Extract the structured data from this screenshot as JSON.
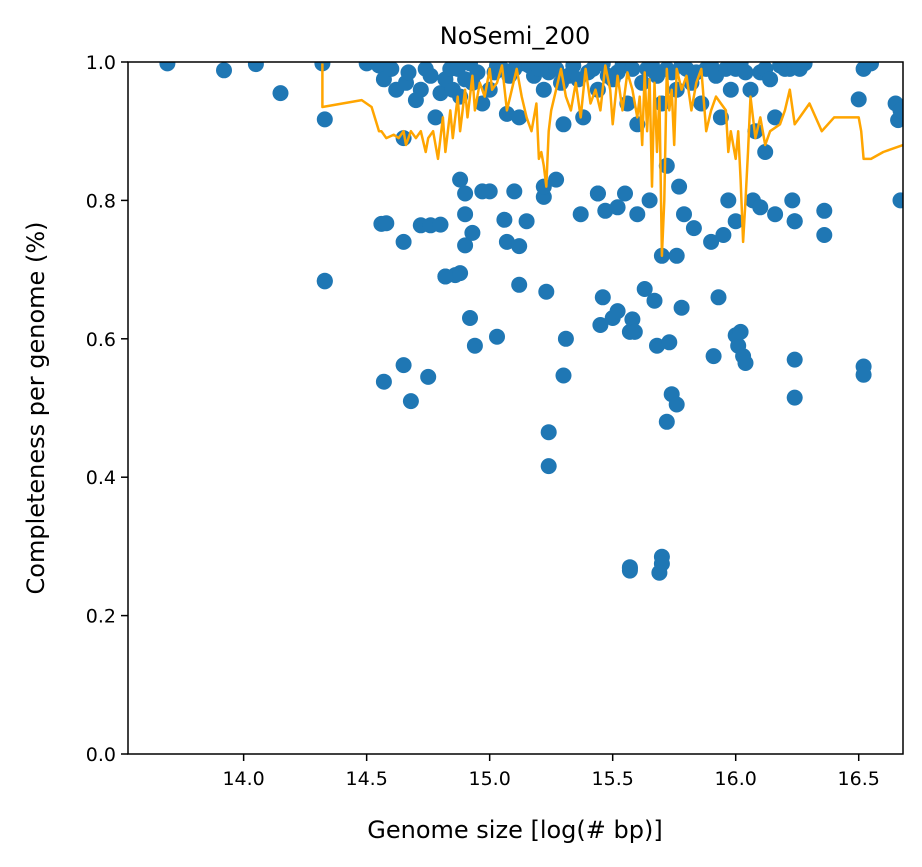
{
  "chart_data": {
    "type": "scatter",
    "title": "NoSemi_200",
    "xlabel": "Genome size [log(# bp)]",
    "ylabel": "Completeness per genome (%)",
    "xlim": [
      13.53,
      16.68
    ],
    "ylim": [
      0.0,
      1.0
    ],
    "x_ticks": [
      14.0,
      14.5,
      15.0,
      15.5,
      16.0,
      16.5
    ],
    "x_tick_labels": [
      "14.0",
      "14.5",
      "15.0",
      "15.5",
      "16.0",
      "16.5"
    ],
    "y_ticks": [
      0.0,
      0.2,
      0.4,
      0.6,
      0.8,
      1.0
    ],
    "y_tick_labels": [
      "0.0",
      "0.2",
      "0.4",
      "0.6",
      "0.8",
      "1.0"
    ],
    "grid": false,
    "colors": {
      "points": "#1f77b4",
      "line": "#ffa500"
    },
    "series": [
      {
        "type": "scatter",
        "x": [
          13.69,
          13.92,
          14.05,
          14.15,
          14.32,
          14.33,
          14.33,
          14.5,
          14.55,
          14.57,
          14.6,
          14.62,
          14.65,
          14.66,
          14.67,
          14.7,
          14.72,
          14.74,
          14.76,
          14.78,
          14.8,
          14.82,
          14.84,
          14.85,
          14.87,
          14.88,
          14.9,
          14.92,
          14.93,
          14.95,
          14.97,
          15.0,
          15.02,
          15.03,
          15.05,
          15.07,
          15.08,
          15.1,
          15.12,
          15.14,
          15.16,
          15.18,
          15.2,
          15.22,
          15.24,
          15.25,
          15.27,
          15.29,
          15.3,
          15.32,
          15.34,
          15.36,
          15.38,
          15.4,
          15.42,
          15.44,
          15.46,
          15.48,
          15.5,
          15.52,
          15.54,
          15.56,
          15.58,
          15.6,
          15.62,
          15.64,
          15.66,
          15.68,
          15.7,
          15.72,
          15.74,
          15.76,
          15.78,
          15.8,
          15.82,
          15.84,
          15.86,
          15.88,
          15.9,
          15.92,
          15.94,
          15.96,
          15.98,
          16.0,
          16.02,
          16.04,
          16.06,
          16.08,
          16.1,
          16.12,
          16.14,
          16.16,
          16.18,
          16.2,
          16.22,
          16.24,
          16.26,
          16.28,
          16.5,
          16.52,
          16.55,
          16.67,
          16.66,
          16.65,
          16.67,
          14.56,
          14.58,
          14.65,
          14.72,
          14.76,
          14.8,
          14.82,
          14.86,
          14.88,
          14.9,
          14.9,
          14.9,
          14.93,
          14.97,
          15.0,
          15.06,
          15.07,
          15.1,
          15.12,
          15.15,
          15.22,
          15.22,
          15.27,
          15.37,
          15.44,
          15.44,
          15.47,
          15.52,
          15.55,
          15.6,
          15.65,
          15.7,
          15.72,
          15.76,
          15.77,
          15.79,
          15.83,
          15.9,
          15.95,
          15.97,
          16.0,
          16.07,
          16.1,
          16.12,
          16.16,
          16.23,
          16.24,
          16.24,
          16.36,
          16.36,
          14.33,
          14.57,
          14.65,
          14.68,
          14.75,
          14.82,
          14.88,
          14.92,
          14.94,
          15.03,
          15.12,
          15.23,
          15.24,
          15.24,
          15.3,
          15.31,
          15.45,
          15.46,
          15.5,
          15.52,
          15.57,
          15.58,
          15.59,
          15.63,
          15.67,
          15.68,
          15.72,
          15.73,
          15.74,
          15.76,
          15.78,
          15.91,
          15.93,
          16.0,
          16.01,
          16.02,
          16.03,
          16.04,
          16.24,
          16.24,
          15.57,
          15.7,
          15.7,
          15.57,
          15.69,
          15.57,
          16.52,
          16.52
        ],
        "y": [
          0.998,
          0.988,
          0.997,
          0.955,
          0.998,
          0.917,
          0.684,
          0.998,
          0.995,
          0.975,
          0.99,
          0.96,
          0.89,
          0.97,
          0.985,
          0.945,
          0.96,
          0.99,
          0.98,
          0.92,
          0.955,
          0.975,
          0.99,
          0.96,
          0.99,
          0.95,
          0.975,
          0.998,
          0.97,
          0.985,
          0.94,
          0.96,
          0.985,
          0.995,
          0.99,
          0.925,
          0.98,
          0.99,
          0.92,
          0.998,
          0.995,
          0.98,
          0.99,
          0.96,
          0.985,
          0.995,
          0.99,
          0.97,
          0.91,
          0.98,
          0.995,
          0.975,
          0.92,
          0.985,
          0.99,
          0.96,
          0.998,
          0.98,
          0.975,
          0.985,
          0.995,
          0.94,
          0.99,
          0.91,
          0.97,
          0.99,
          0.995,
          0.98,
          0.94,
          0.99,
          0.985,
          0.96,
          0.995,
          0.99,
          0.97,
          0.985,
          0.94,
          0.99,
          0.995,
          0.98,
          0.92,
          0.99,
          0.96,
          0.99,
          0.998,
          0.985,
          0.96,
          0.9,
          0.985,
          0.99,
          0.975,
          0.92,
          0.995,
          0.99,
          0.99,
          0.997,
          0.99,
          0.998,
          0.946,
          0.99,
          0.998,
          0.8,
          0.916,
          0.94,
          0.93,
          0.766,
          0.767,
          0.74,
          0.764,
          0.764,
          0.765,
          0.69,
          0.692,
          0.83,
          0.81,
          0.78,
          0.735,
          0.753,
          0.813,
          0.813,
          0.772,
          0.74,
          0.813,
          0.734,
          0.77,
          0.805,
          0.82,
          0.83,
          0.78,
          0.81,
          0.81,
          0.785,
          0.79,
          0.81,
          0.78,
          0.8,
          0.72,
          0.85,
          0.72,
          0.82,
          0.78,
          0.76,
          0.74,
          0.75,
          0.8,
          0.77,
          0.8,
          0.79,
          0.87,
          0.78,
          0.8,
          0.77,
          0.77,
          0.75,
          0.785,
          0.683,
          0.538,
          0.562,
          0.51,
          0.545,
          0.69,
          0.695,
          0.63,
          0.59,
          0.603,
          0.678,
          0.668,
          0.465,
          0.416,
          0.547,
          0.6,
          0.62,
          0.66,
          0.63,
          0.64,
          0.61,
          0.628,
          0.61,
          0.672,
          0.655,
          0.59,
          0.48,
          0.595,
          0.52,
          0.505,
          0.645,
          0.575,
          0.66,
          0.605,
          0.59,
          0.61,
          0.575,
          0.565,
          0.57,
          0.515,
          0.27,
          0.285,
          0.275,
          0.265,
          0.262,
          0.268,
          0.56,
          0.548
        ]
      },
      {
        "type": "line",
        "x": [
          14.32,
          14.32,
          14.48,
          14.52,
          14.55,
          14.56,
          14.58,
          14.61,
          14.63,
          14.65,
          14.66,
          14.68,
          14.7,
          14.72,
          14.74,
          14.75,
          14.77,
          14.79,
          14.81,
          14.82,
          14.84,
          14.85,
          14.87,
          14.88,
          14.9,
          14.91,
          14.93,
          14.94,
          14.96,
          14.98,
          15.0,
          15.01,
          15.03,
          15.05,
          15.07,
          15.09,
          15.11,
          15.13,
          15.15,
          15.17,
          15.19,
          15.2,
          15.21,
          15.22,
          15.23,
          15.24,
          15.25,
          15.27,
          15.29,
          15.31,
          15.33,
          15.35,
          15.37,
          15.39,
          15.41,
          15.43,
          15.45,
          15.47,
          15.49,
          15.5,
          15.52,
          15.54,
          15.56,
          15.58,
          15.6,
          15.61,
          15.62,
          15.63,
          15.64,
          15.65,
          15.66,
          15.67,
          15.68,
          15.69,
          15.7,
          15.71,
          15.72,
          15.73,
          15.74,
          15.75,
          15.76,
          15.78,
          15.8,
          15.82,
          15.84,
          15.86,
          15.88,
          15.9,
          15.92,
          15.94,
          15.96,
          15.97,
          15.98,
          16.0,
          16.01,
          16.02,
          16.03,
          16.04,
          16.05,
          16.06,
          16.08,
          16.1,
          16.12,
          16.14,
          16.18,
          16.2,
          16.22,
          16.24,
          16.26,
          16.3,
          16.35,
          16.4,
          16.45,
          16.5,
          16.51,
          16.52,
          16.55,
          16.6,
          16.68
        ],
        "y": [
          0.998,
          0.935,
          0.945,
          0.935,
          0.9,
          0.9,
          0.89,
          0.895,
          0.89,
          0.9,
          0.88,
          0.9,
          0.89,
          0.9,
          0.87,
          0.89,
          0.9,
          0.86,
          0.92,
          0.87,
          0.93,
          0.89,
          0.95,
          0.9,
          0.96,
          0.92,
          0.98,
          0.93,
          0.97,
          0.95,
          0.99,
          0.96,
          0.97,
          0.995,
          0.93,
          0.96,
          0.99,
          0.95,
          0.92,
          0.9,
          0.94,
          0.86,
          0.87,
          0.85,
          0.82,
          0.9,
          0.93,
          0.96,
          0.99,
          0.95,
          0.93,
          0.97,
          0.92,
          0.99,
          0.94,
          0.96,
          0.93,
          0.995,
          0.96,
          0.91,
          0.98,
          0.93,
          0.985,
          0.96,
          0.92,
          0.95,
          0.88,
          0.985,
          0.9,
          0.975,
          0.82,
          0.97,
          0.87,
          0.95,
          0.72,
          0.8,
          0.99,
          0.93,
          0.96,
          0.88,
          0.99,
          0.96,
          0.98,
          0.93,
          0.97,
          0.99,
          0.9,
          0.93,
          0.95,
          0.94,
          0.93,
          0.87,
          0.9,
          0.86,
          0.9,
          0.83,
          0.74,
          0.8,
          0.87,
          0.95,
          0.89,
          0.92,
          0.88,
          0.9,
          0.91,
          0.93,
          0.96,
          0.91,
          0.92,
          0.94,
          0.9,
          0.92,
          0.92,
          0.92,
          0.9,
          0.86,
          0.86,
          0.87,
          0.88
        ]
      }
    ]
  }
}
